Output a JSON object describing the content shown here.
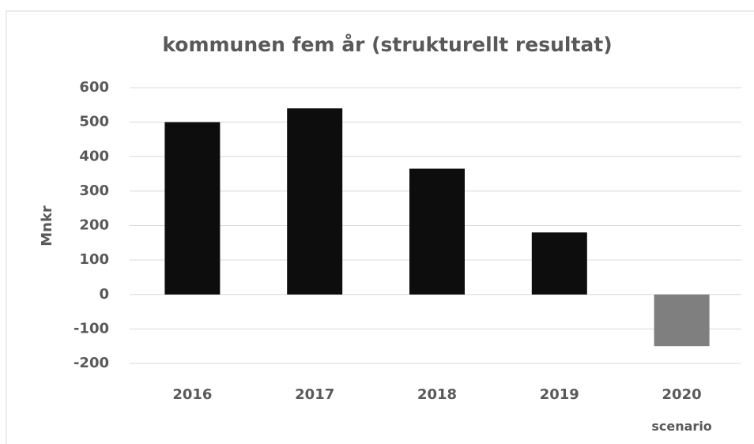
{
  "chart_data": {
    "type": "bar",
    "title": "kommunen fem år (strukturellt resultat)",
    "y_label": "Mnkr",
    "categories": [
      "2016",
      "2017",
      "2018",
      "2019",
      "2020 scenario"
    ],
    "values": [
      500,
      540,
      365,
      180,
      -150
    ],
    "colors": [
      "#0d0d0d",
      "#0d0d0d",
      "#0d0d0d",
      "#0d0d0d",
      "#7f7f7f"
    ],
    "ylim": [
      -200,
      600
    ],
    "yticks": [
      -200,
      -100,
      0,
      100,
      200,
      300,
      400,
      500,
      600
    ],
    "grid": true
  }
}
